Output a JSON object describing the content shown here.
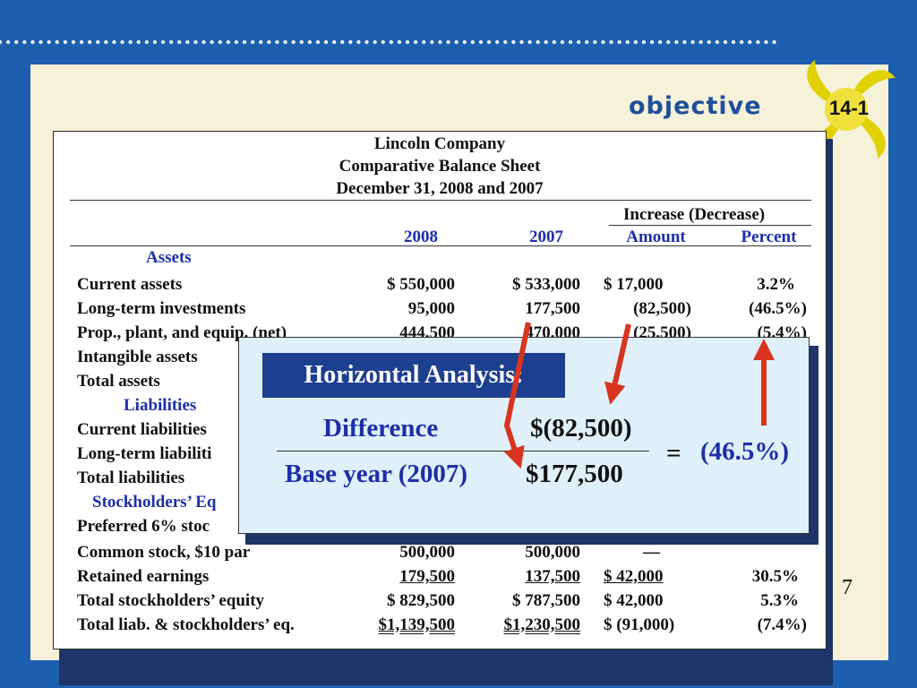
{
  "header": {
    "objective_label": "objective",
    "objective_number": "14-1"
  },
  "slide_number": "7",
  "balance_sheet": {
    "title_lines": [
      "Lincoln Company",
      "Comparative Balance Sheet",
      "December 31, 2008 and 2007"
    ],
    "group_header": "Increase (Decrease)",
    "columns": [
      "2008",
      "2007",
      "Amount",
      "Percent"
    ],
    "sections": {
      "assets": "Assets",
      "liabilities": "Liabilities",
      "equity": "Stockholders’ Eq"
    },
    "rows": [
      {
        "label": "Current assets",
        "c2008": "$  550,000",
        "c2007": "$   533,000",
        "amount": "$   17,000",
        "percent": "3.2%"
      },
      {
        "label": "Long-term investments",
        "c2008": "95,000",
        "c2007": "177,500",
        "amount": "(82,500)",
        "percent": "(46.5%)"
      },
      {
        "label": "Prop., plant, and equip. (net)",
        "c2008": "444,500",
        "c2007": "470,000",
        "amount": "(25,500)",
        "percent": "(5.4%)"
      },
      {
        "label": "Intangible assets"
      },
      {
        "label": "Total assets"
      },
      {
        "label": "Current liabilities"
      },
      {
        "label": "Long-term liabiliti"
      },
      {
        "label": "Total liabilities"
      },
      {
        "label": "Preferred 6% stoc"
      },
      {
        "label": "Common stock, $10 par",
        "c2008": "500,000",
        "c2007": "500,000",
        "amount": "—",
        "percent": ""
      },
      {
        "label": "Retained earnings",
        "c2008": "179,500",
        "c2007": "137,500",
        "amount": "$   42,000",
        "percent": "30.5%"
      },
      {
        "label": "Total stockholders’ equity",
        "c2008": "$   829,500",
        "c2007": "$   787,500",
        "amount": "$   42,000",
        "percent": "5.3%"
      },
      {
        "label": "Total liab. & stockholders’ eq.",
        "c2008": "$1,139,500",
        "c2007": "$1,230,500",
        "amount": "$  (91,000)",
        "percent": "(7.4%)"
      }
    ]
  },
  "horizontal_analysis": {
    "title": "Horizontal Analysis:",
    "numerator_label": "Difference",
    "numerator_value": "$(82,500)",
    "denominator_label": "Base year (2007)",
    "denominator_value": "$177,500",
    "equals": "=",
    "result": "(46.5%)"
  },
  "colors": {
    "background": "#1c5fae",
    "panel": "#f6f1d9",
    "accent_blue": "#1d2fa8",
    "arrow_red": "#d8341f",
    "box_fill": "#dff0fb"
  }
}
